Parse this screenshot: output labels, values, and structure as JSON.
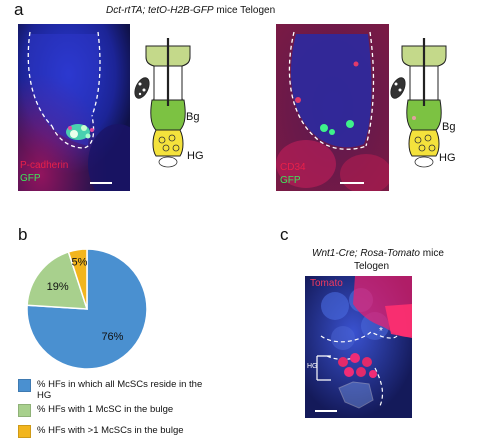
{
  "panel_a": {
    "label": "a",
    "title_italic": "Dct-rtTA; tetO-H2B-GFP",
    "title_rest": " mice  Telogen",
    "left_image": {
      "stain_red": "P-cadherin",
      "stain_green": "GFP"
    },
    "right_image": {
      "stain_red": "CD34",
      "stain_green": "GFP"
    },
    "diagram_labels": {
      "bulge": "Bg",
      "hair_germ": "HG"
    }
  },
  "panel_b": {
    "label": "b",
    "slice_labels": [
      "76%",
      "19%",
      "5%"
    ],
    "legend": [
      {
        "label": "% HFs in which all McSCs reside in the HG",
        "color": "#4a90d0"
      },
      {
        "label": "% HFs with 1 McSC in the bulge",
        "color": "#a8d08d"
      },
      {
        "label": "% HFs with >1 McSCs in the bulge",
        "color": "#f2b51d"
      }
    ]
  },
  "chart_data": {
    "type": "pie",
    "categories": [
      "% HFs in which all McSCs reside in the HG",
      "% HFs with 1 McSC in the bulge",
      "% HFs with >1 McSCs in the bulge"
    ],
    "values": [
      76,
      19,
      5
    ],
    "colors": [
      "#4a90d0",
      "#a8d08d",
      "#f2b51d"
    ],
    "legend_position": "bottom"
  },
  "panel_c": {
    "label": "c",
    "title_italic": "Wnt1-Cre; Rosa-Tomato",
    "title_rest": " mice",
    "subtitle": "Telogen",
    "stain": "Tomato",
    "hg_label": "HG",
    "star": "*"
  },
  "colors": {
    "blue": "#4a90d0",
    "green": "#a8d08d",
    "yellow": "#f2b51d",
    "stain_red": "#e8204a",
    "stain_green": "#3ee55a"
  }
}
